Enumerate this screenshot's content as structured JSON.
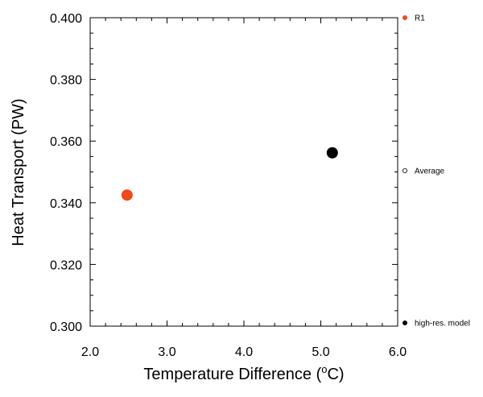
{
  "chart_data": {
    "type": "scatter",
    "xlabel_main": "Temperature Difference (",
    "xlabel_sup": "o",
    "xlabel_tail": "C)",
    "ylabel": "Heat Transport (PW)",
    "xlim": [
      2.0,
      6.0
    ],
    "ylim": [
      0.3,
      0.4
    ],
    "x_ticks": [
      2.0,
      3.0,
      4.0,
      5.0,
      6.0
    ],
    "x_tick_labels": [
      "2.0",
      "3.0",
      "4.0",
      "5.0",
      "6.0"
    ],
    "y_ticks": [
      0.3,
      0.32,
      0.34,
      0.36,
      0.38,
      0.4
    ],
    "y_tick_labels": [
      "0.300",
      "0.320",
      "0.340",
      "0.360",
      "0.380",
      "0.400"
    ],
    "grid": false,
    "legend_placement": "right",
    "series": [
      {
        "name": "R1",
        "color": "#f04a1a",
        "filled": true,
        "points": [
          {
            "x": 2.48,
            "y": 0.3425
          }
        ]
      },
      {
        "name": "Average",
        "color": "#000000",
        "filled": false,
        "points": []
      },
      {
        "name": "high-res. model",
        "color": "#000000",
        "filled": true,
        "points": [
          {
            "x": 5.15,
            "y": 0.3562
          }
        ]
      }
    ]
  }
}
